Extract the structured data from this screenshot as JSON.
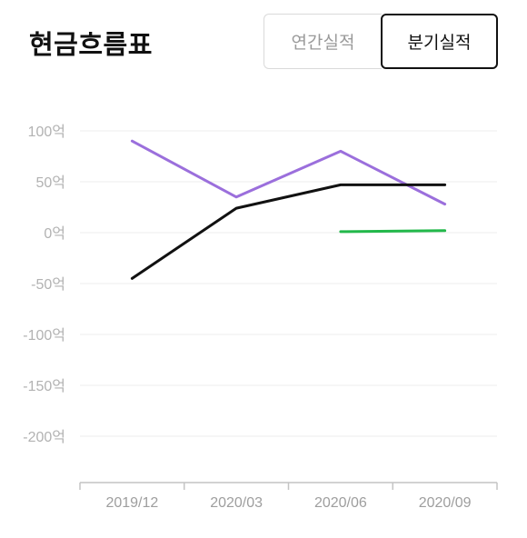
{
  "header": {
    "title": "현금흐름표",
    "tabs": [
      {
        "label": "연간실적",
        "active": false
      },
      {
        "label": "분기실적",
        "active": true
      }
    ]
  },
  "chart_data": {
    "type": "line",
    "categories": [
      "2019/12",
      "2020/03",
      "2020/06",
      "2020/09"
    ],
    "y_ticks": [
      "100억",
      "50억",
      "0억",
      "-50억",
      "-100억",
      "-150억",
      "-200억"
    ],
    "y_tick_values": [
      100,
      50,
      0,
      -50,
      -100,
      -150,
      -200
    ],
    "ylim": [
      -245,
      100
    ],
    "grid": true,
    "series": [
      {
        "color": "#9b6fdc",
        "values": [
          90,
          35,
          80,
          28
        ]
      },
      {
        "color": "#111111",
        "values": [
          -45,
          24,
          47,
          47
        ]
      },
      {
        "color": "#22b84a",
        "values": [
          null,
          null,
          1,
          2
        ]
      }
    ]
  }
}
